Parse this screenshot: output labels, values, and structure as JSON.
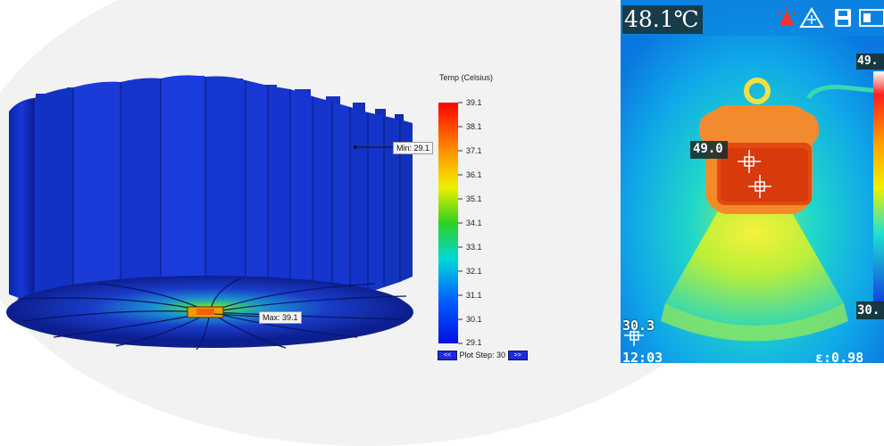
{
  "simulation": {
    "legend_title": "Temp (Celsius)",
    "ticks": [
      "39.1",
      "38.1",
      "37.1",
      "36.1",
      "35.1",
      "34.1",
      "33.1",
      "32.1",
      "31.1",
      "30.1",
      "29.1"
    ],
    "min_label": "Min: 29.1",
    "max_label": "Max: 39.1",
    "plot_step_label": "Plot Step: 30",
    "prev_icon": "double-chevron-left-icon",
    "next_icon": "double-chevron-right-icon",
    "prev_glyph": "<<",
    "next_glyph": ">>"
  },
  "thermal_camera": {
    "center_temp": "48.1℃",
    "hot_spot_value": "49.0",
    "max_value": "49.",
    "cold_spot_value": "30.3",
    "min_value": "30.",
    "time": "12:03",
    "emissivity": "ε:0.98",
    "status_icons": [
      "alarm-icon",
      "snowflake-icon",
      "save-icon",
      "battery-icon"
    ]
  }
}
